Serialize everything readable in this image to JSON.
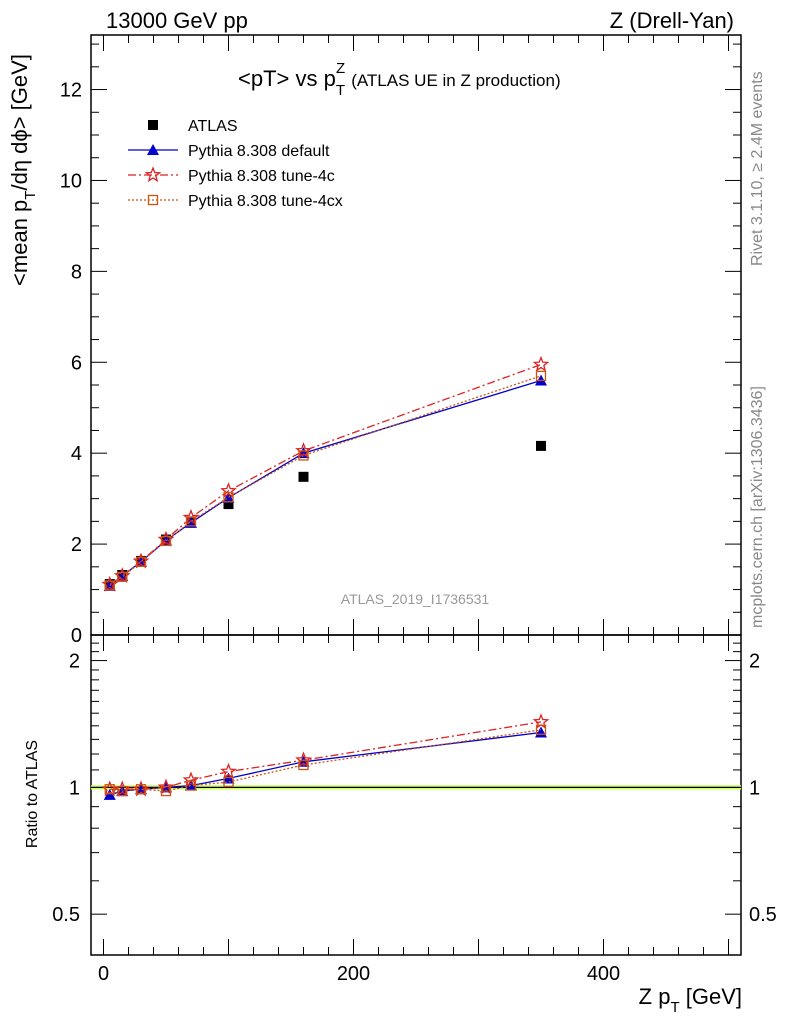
{
  "header": {
    "left": "13000 GeV pp",
    "right": "Z (Drell-Yan)"
  },
  "plot_title": {
    "main": "<pT> vs p",
    "sup": "Z",
    "sub": "T",
    "suffix": "(ATLAS UE in Z production)"
  },
  "y_label_top": {
    "prefix": "<mean p",
    "sub": "T",
    "suffix": "/dη dϕ> [GeV]"
  },
  "y_label_bottom": "Ratio to ATLAS",
  "x_label": {
    "prefix": "Z p",
    "sub": "T",
    "suffix": " [GeV]"
  },
  "side_text": {
    "rivet": "Rivet 3.1.10, ≥ 2.4M events",
    "mcplots": "mcplots.cern.ch [arXiv:1306.3436]"
  },
  "watermark": "ATLAS_2019_I1736531",
  "colors": {
    "data": "#000000",
    "default": "#0000cc",
    "tune4c": "#dd2222",
    "tune4cx": "#cc5511",
    "band": "#ccff66"
  },
  "chart_data": [
    {
      "type": "scatter",
      "panel": "main",
      "xlim": [
        -10,
        510
      ],
      "ylim": [
        0,
        13.2
      ],
      "x_ticks": [
        0,
        200,
        400
      ],
      "y_ticks": [
        0,
        2,
        4,
        6,
        8,
        10,
        12
      ],
      "legend_position": "top-left",
      "x": [
        5,
        15,
        30,
        50,
        70,
        100,
        160,
        350
      ],
      "series": [
        {
          "name": "ATLAS",
          "key": "data",
          "marker": "square",
          "values": [
            1.12,
            1.32,
            1.63,
            2.1,
            2.47,
            2.88,
            3.48,
            4.16
          ]
        },
        {
          "name": "Pythia 8.308 default",
          "key": "default",
          "marker": "triangle",
          "values": [
            1.08,
            1.3,
            1.61,
            2.08,
            2.47,
            3.02,
            4.0,
            5.6
          ]
        },
        {
          "name": "Pythia 8.308 tune-4c",
          "key": "tune4c",
          "marker": "star",
          "values": [
            1.11,
            1.3,
            1.62,
            2.1,
            2.58,
            3.17,
            4.05,
            5.95
          ]
        },
        {
          "name": "Pythia 8.308 tune-4cx",
          "key": "tune4cx",
          "marker": "open-square",
          "values": [
            1.09,
            1.28,
            1.61,
            2.07,
            2.5,
            3.03,
            3.95,
            5.7
          ]
        }
      ]
    },
    {
      "type": "line",
      "panel": "ratio",
      "ylim": [
        0.4,
        2.3
      ],
      "y_ticks": [
        0.5,
        1,
        2
      ],
      "y_tick_labels": [
        "0.5",
        "1",
        "2"
      ],
      "x": [
        5,
        15,
        30,
        50,
        70,
        100,
        160,
        350
      ],
      "series": [
        {
          "key": "default",
          "marker": "triangle",
          "values": [
            0.96,
            0.98,
            0.99,
            1.0,
            1.01,
            1.05,
            1.15,
            1.35
          ]
        },
        {
          "key": "tune4c",
          "marker": "star",
          "values": [
            0.99,
            0.99,
            0.99,
            1.0,
            1.04,
            1.09,
            1.16,
            1.43
          ]
        },
        {
          "key": "tune4cx",
          "marker": "open-square",
          "values": [
            0.99,
            0.98,
            0.99,
            0.98,
            1.01,
            1.03,
            1.13,
            1.37
          ]
        }
      ]
    }
  ]
}
